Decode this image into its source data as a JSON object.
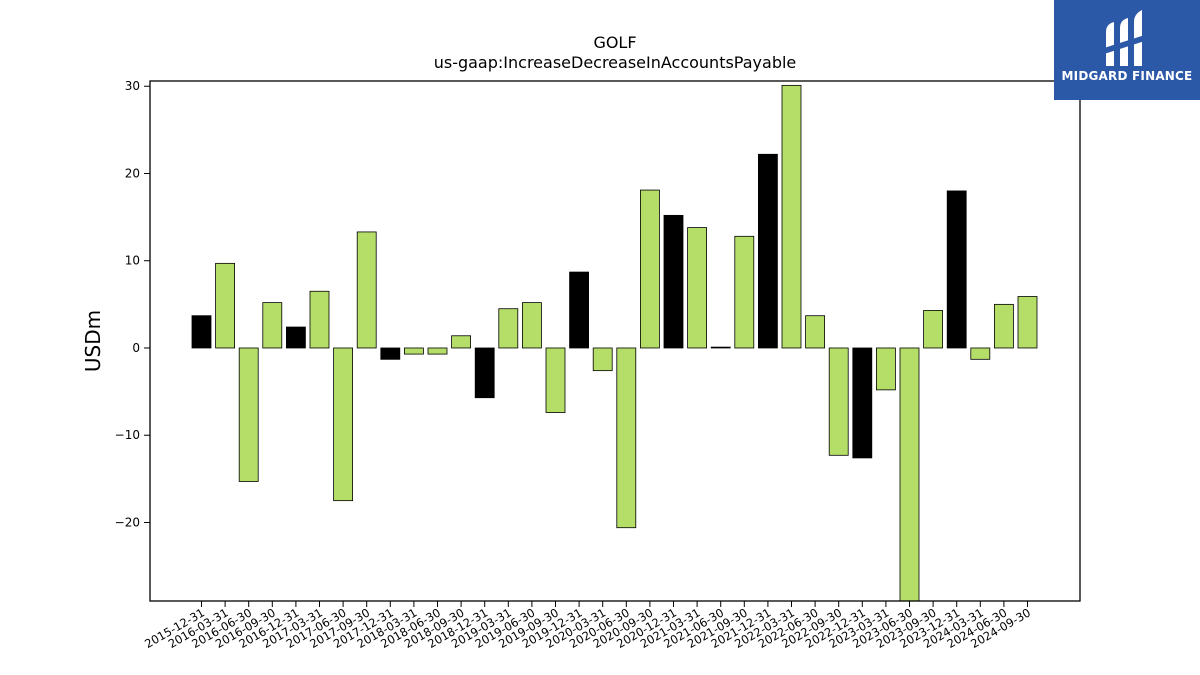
{
  "chart_data": {
    "type": "bar",
    "title": "GOLF",
    "subtitle": "us-gaap:IncreaseDecreaseInAccountsPayable",
    "xlabel": "",
    "ylabel": "USDm",
    "ylim": [
      -29,
      30.6
    ],
    "yticks": [
      -20,
      -10,
      0,
      10,
      20,
      30
    ],
    "ytick_labels": [
      "−20",
      "−10",
      "0",
      "10",
      "20",
      "30"
    ],
    "grid": false,
    "categories": [
      "2015-12-31",
      "2016-03-31",
      "2016-06-30",
      "2016-09-30",
      "2016-12-31",
      "2017-03-31",
      "2017-06-30",
      "2017-09-30",
      "2017-12-31",
      "2018-03-31",
      "2018-06-30",
      "2018-09-30",
      "2018-12-31",
      "2019-03-31",
      "2019-06-30",
      "2019-09-30",
      "2019-12-31",
      "2020-03-31",
      "2020-06-30",
      "2020-09-30",
      "2020-12-31",
      "2021-03-31",
      "2021-06-30",
      "2021-09-30",
      "2021-12-31",
      "2022-03-31",
      "2022-06-30",
      "2022-09-30",
      "2022-12-31",
      "2023-03-31",
      "2023-06-30",
      "2023-09-30",
      "2023-12-31",
      "2024-03-31",
      "2024-06-30",
      "2024-09-30"
    ],
    "values": [
      3.7,
      9.7,
      -15.3,
      5.2,
      2.4,
      6.5,
      -17.5,
      13.3,
      -1.3,
      -0.7,
      -0.7,
      1.4,
      -5.7,
      4.5,
      5.2,
      -7.4,
      8.7,
      -2.6,
      -20.6,
      18.1,
      15.2,
      13.8,
      0.1,
      12.8,
      22.2,
      30.1,
      3.7,
      -12.3,
      -12.6,
      -4.8,
      -29.0,
      4.3,
      18.0,
      -1.3,
      5.0,
      5.9
    ],
    "bar_colors": [
      "#000000",
      "#b5de69",
      "#b5de69",
      "#b5de69",
      "#000000",
      "#b5de69",
      "#b5de69",
      "#b5de69",
      "#000000",
      "#b5de69",
      "#b5de69",
      "#b5de69",
      "#000000",
      "#b5de69",
      "#b5de69",
      "#b5de69",
      "#000000",
      "#b5de69",
      "#b5de69",
      "#b5de69",
      "#000000",
      "#b5de69",
      "#000000",
      "#b5de69",
      "#000000",
      "#b5de69",
      "#b5de69",
      "#b5de69",
      "#000000",
      "#b5de69",
      "#b5de69",
      "#b5de69",
      "#000000",
      "#b5de69",
      "#b5de69",
      "#b5de69"
    ],
    "colors": {
      "q4": "#000000",
      "other": "#b5de69",
      "edge": "#000000"
    }
  },
  "logo": {
    "text": "MIDGARD FINANCE",
    "background": "#2c58a8",
    "icon": "midgard-logo-mark"
  }
}
